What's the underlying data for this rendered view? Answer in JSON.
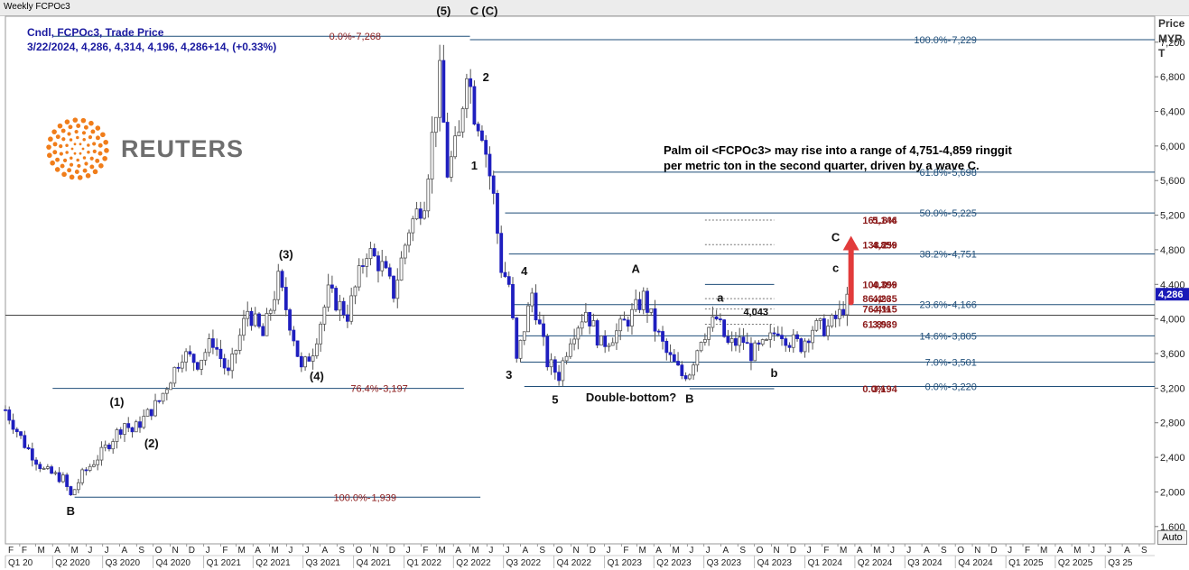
{
  "window": {
    "title": "Weekly FCPOc3"
  },
  "legend": {
    "line1": "Cndl, FCPOc3, Trade Price",
    "line2": "3/22/2024, 4,286, 4,314, 4,196, 4,286+14, (+0.33%)"
  },
  "axis": {
    "price_label": "Price",
    "currency_label": "MYR",
    "t_label": "T",
    "auto_label": "Auto"
  },
  "logo": {
    "text": "REUTERS"
  },
  "note": {
    "line1": "Palm oil <FCPOc3> may rise into a range of 4,751-4,859 ringgit",
    "line2": "per metric ton in the second quarter, driven by a wave C."
  },
  "chart_data": {
    "type": "candlestick",
    "title": "Weekly FCPOc3",
    "series_name": "Cndl, FCPOc3, Trade Price",
    "x_range": [
      "2020-01-06",
      "2025-09-29"
    ],
    "y_range": [
      1400,
      7500
    ],
    "y_ticks": [
      1600,
      2000,
      2400,
      2800,
      3200,
      3600,
      4000,
      4400,
      4800,
      5200,
      5600,
      6000,
      6400,
      6800,
      7200
    ],
    "y_tick_labels": [
      "1,600",
      "2,000",
      "2,400",
      "2,800",
      "3,200",
      "3,600",
      "4,000",
      "4,400",
      "4,800",
      "5,200",
      "5,600",
      "6,000",
      "6,400",
      "6,800",
      "7,200"
    ],
    "last_price": 4286,
    "last_price_label": "4,286",
    "horizontal_line": 4043,
    "month_ticks": [
      [
        "2020-02-01",
        "F"
      ],
      [
        "2020-03-01",
        "M"
      ],
      [
        "2020-04-01",
        "A"
      ],
      [
        "2020-05-01",
        "M"
      ],
      [
        "2020-06-01",
        "J"
      ],
      [
        "2020-07-01",
        "J"
      ],
      [
        "2020-08-01",
        "A"
      ],
      [
        "2020-09-01",
        "S"
      ],
      [
        "2020-10-01",
        "O"
      ],
      [
        "2020-11-01",
        "N"
      ],
      [
        "2020-12-01",
        "D"
      ],
      [
        "2021-01-01",
        "J"
      ],
      [
        "2021-02-01",
        "F"
      ],
      [
        "2021-03-01",
        "M"
      ],
      [
        "2021-04-01",
        "A"
      ],
      [
        "2021-05-01",
        "M"
      ],
      [
        "2021-06-01",
        "J"
      ],
      [
        "2021-07-01",
        "J"
      ],
      [
        "2021-08-01",
        "A"
      ],
      [
        "2021-09-01",
        "S"
      ],
      [
        "2021-10-01",
        "O"
      ],
      [
        "2021-11-01",
        "N"
      ],
      [
        "2021-12-01",
        "D"
      ],
      [
        "2022-01-01",
        "J"
      ],
      [
        "2022-02-01",
        "F"
      ],
      [
        "2022-03-01",
        "M"
      ],
      [
        "2022-04-01",
        "A"
      ],
      [
        "2022-05-01",
        "M"
      ],
      [
        "2022-06-01",
        "J"
      ],
      [
        "2022-07-01",
        "J"
      ],
      [
        "2022-08-01",
        "A"
      ],
      [
        "2022-09-01",
        "S"
      ],
      [
        "2022-10-01",
        "O"
      ],
      [
        "2022-11-01",
        "N"
      ],
      [
        "2022-12-01",
        "D"
      ],
      [
        "2023-01-01",
        "J"
      ],
      [
        "2023-02-01",
        "F"
      ],
      [
        "2023-03-01",
        "M"
      ],
      [
        "2023-04-01",
        "A"
      ],
      [
        "2023-05-01",
        "M"
      ],
      [
        "2023-06-01",
        "J"
      ],
      [
        "2023-07-01",
        "J"
      ],
      [
        "2023-08-01",
        "A"
      ],
      [
        "2023-09-01",
        "S"
      ],
      [
        "2023-10-01",
        "O"
      ],
      [
        "2023-11-01",
        "N"
      ],
      [
        "2023-12-01",
        "D"
      ],
      [
        "2024-01-01",
        "J"
      ],
      [
        "2024-02-01",
        "F"
      ],
      [
        "2024-03-01",
        "M"
      ],
      [
        "2024-04-01",
        "A"
      ],
      [
        "2024-05-01",
        "M"
      ],
      [
        "2024-06-01",
        "J"
      ],
      [
        "2024-07-01",
        "J"
      ],
      [
        "2024-08-01",
        "A"
      ],
      [
        "2024-09-01",
        "S"
      ],
      [
        "2024-10-01",
        "O"
      ],
      [
        "2024-11-01",
        "N"
      ],
      [
        "2024-12-01",
        "D"
      ],
      [
        "2025-01-01",
        "J"
      ],
      [
        "2025-02-01",
        "F"
      ],
      [
        "2025-03-01",
        "M"
      ],
      [
        "2025-04-01",
        "A"
      ],
      [
        "2025-05-01",
        "M"
      ],
      [
        "2025-06-01",
        "J"
      ],
      [
        "2025-07-01",
        "J"
      ],
      [
        "2025-08-01",
        "A"
      ],
      [
        "2025-09-01",
        "S"
      ]
    ],
    "quarter_ticks": [
      [
        "2020-01-01",
        "Q1 20"
      ],
      [
        "2020-04-01",
        "Q2 2020"
      ],
      [
        "2020-07-01",
        "Q3 2020"
      ],
      [
        "2020-10-01",
        "Q4 2020"
      ],
      [
        "2021-01-01",
        "Q1 2021"
      ],
      [
        "2021-04-01",
        "Q2 2021"
      ],
      [
        "2021-07-01",
        "Q3 2021"
      ],
      [
        "2021-10-01",
        "Q4 2021"
      ],
      [
        "2022-01-01",
        "Q1 2022"
      ],
      [
        "2022-04-01",
        "Q2 2022"
      ],
      [
        "2022-07-01",
        "Q3 2022"
      ],
      [
        "2022-10-01",
        "Q4 2022"
      ],
      [
        "2023-01-01",
        "Q1 2023"
      ],
      [
        "2023-04-01",
        "Q2 2023"
      ],
      [
        "2023-07-01",
        "Q3 2023"
      ],
      [
        "2023-10-01",
        "Q4 2023"
      ],
      [
        "2024-01-01",
        "Q1 2024"
      ],
      [
        "2024-04-01",
        "Q2 2024"
      ],
      [
        "2024-07-01",
        "Q3 2024"
      ],
      [
        "2024-10-01",
        "Q4 2024"
      ],
      [
        "2025-01-01",
        "Q1 2025"
      ],
      [
        "2025-04-01",
        "Q2 2025"
      ],
      [
        "2025-07-01",
        "Q3 25"
      ]
    ],
    "price_path": [
      [
        "2020-01-06",
        2950
      ],
      [
        "2020-02-10",
        2550
      ],
      [
        "2020-03-16",
        2250
      ],
      [
        "2020-04-20",
        2150
      ],
      [
        "2020-05-04",
        1950
      ],
      [
        "2020-05-25",
        2200
      ],
      [
        "2020-06-29",
        2450
      ],
      [
        "2020-08-10",
        2800
      ],
      [
        "2020-08-24",
        2700
      ],
      [
        "2020-10-12",
        3050
      ],
      [
        "2020-11-23",
        3600
      ],
      [
        "2020-12-21",
        3500
      ],
      [
        "2021-01-18",
        3750
      ],
      [
        "2021-02-15",
        3350
      ],
      [
        "2021-03-22",
        4100
      ],
      [
        "2021-04-19",
        3800
      ],
      [
        "2021-05-17",
        4450
      ],
      [
        "2021-06-14",
        3800
      ],
      [
        "2021-06-28",
        3400
      ],
      [
        "2021-07-19",
        3650
      ],
      [
        "2021-08-16",
        4300
      ],
      [
        "2021-09-20",
        4050
      ],
      [
        "2021-10-25",
        4800
      ],
      [
        "2021-11-22",
        4600
      ],
      [
        "2021-12-13",
        4300
      ],
      [
        "2022-01-10",
        5050
      ],
      [
        "2022-02-07",
        5400
      ],
      [
        "2022-03-07",
        6800
      ],
      [
        "2022-03-21",
        5700
      ],
      [
        "2022-04-11",
        6100
      ],
      [
        "2022-04-25",
        6950
      ],
      [
        "2022-05-09",
        6400
      ],
      [
        "2022-05-23",
        6200
      ],
      [
        "2022-06-13",
        5400
      ],
      [
        "2022-06-27",
        4600
      ],
      [
        "2022-07-11",
        4400
      ],
      [
        "2022-07-25",
        3500
      ],
      [
        "2022-08-22",
        4300
      ],
      [
        "2022-09-19",
        3500
      ],
      [
        "2022-10-10",
        3350
      ],
      [
        "2022-10-31",
        3800
      ],
      [
        "2022-11-28",
        4100
      ],
      [
        "2022-12-26",
        3700
      ],
      [
        "2023-01-23",
        3850
      ],
      [
        "2023-02-20",
        4050
      ],
      [
        "2023-03-13",
        4250
      ],
      [
        "2023-04-03",
        3900
      ],
      [
        "2023-04-24",
        3600
      ],
      [
        "2023-05-22",
        3350
      ],
      [
        "2023-06-05",
        3400
      ],
      [
        "2023-06-26",
        3800
      ],
      [
        "2023-07-24",
        4000
      ],
      [
        "2023-08-14",
        3700
      ],
      [
        "2023-09-11",
        3750
      ],
      [
        "2023-09-25",
        3600
      ],
      [
        "2023-10-23",
        3700
      ],
      [
        "2023-11-13",
        3900
      ],
      [
        "2023-12-04",
        3750
      ],
      [
        "2023-12-25",
        3700
      ],
      [
        "2024-01-15",
        3900
      ],
      [
        "2024-02-12",
        3900
      ],
      [
        "2024-03-04",
        4050
      ],
      [
        "2024-03-22",
        4286
      ]
    ],
    "fib_lines": [
      {
        "price": 7268,
        "start": "2020-04-01",
        "end": "2022-05-01",
        "color": "#1f4e79",
        "label": "0.0%-",
        "label_color": "#8b1a1a",
        "value_label": "7,268",
        "value_color": "#8b1a1a",
        "label_date": "2021-10-04"
      },
      {
        "price": 3197,
        "start": "2020-04-01",
        "end": "2022-04-20",
        "color": "#1f4e79",
        "label": "76.4%-",
        "label_color": "#8b1a1a",
        "value_label": "3,197",
        "value_color": "#8b1a1a",
        "label_date": "2021-11-22"
      },
      {
        "price": 1939,
        "start": "2020-05-11",
        "end": "2022-05-20",
        "color": "#1f4e79",
        "label": "100.0%-",
        "label_color": "#8b1a1a",
        "value_label": "1,939",
        "value_color": "#8b1a1a",
        "label_date": "2021-11-01"
      },
      {
        "price": 7229,
        "start": "2022-05-01",
        "end": "2025-09-29",
        "color": "#1f4e79",
        "label": "100.0%-",
        "label_color": "#1f4e79",
        "value_label": "7,229",
        "value_color": "#1f4e79",
        "label_date": "2024-09-23"
      },
      {
        "price": 5698,
        "start": "2022-06-13",
        "end": "2025-09-29",
        "color": "#1f4e79",
        "label": "61.8%-",
        "label_color": "#1f4e79",
        "value_label": "5,698",
        "value_color": "#1f4e79",
        "label_date": "2024-09-23"
      },
      {
        "price": 5225,
        "start": "2022-07-04",
        "end": "2025-09-29",
        "color": "#1f4e79",
        "label": "50.0%-",
        "label_color": "#1f4e79",
        "value_label": "5,225",
        "value_color": "#1f4e79",
        "label_date": "2024-09-23"
      },
      {
        "price": 4751,
        "start": "2022-07-11",
        "end": "2025-09-29",
        "color": "#1f4e79",
        "label": "38.2%-",
        "label_color": "#1f4e79",
        "value_label": "4,751",
        "value_color": "#1f4e79",
        "label_date": "2024-09-23"
      },
      {
        "price": 4166,
        "start": "2022-07-18",
        "end": "2025-09-29",
        "color": "#1f4e79",
        "label": "23.6%-",
        "label_color": "#1f4e79",
        "value_label": "4,166",
        "value_color": "#1f4e79",
        "label_date": "2024-09-23"
      },
      {
        "price": 3805,
        "start": "2022-07-25",
        "end": "2025-09-29",
        "color": "#1f4e79",
        "label": "14.6%-",
        "label_color": "#1f4e79",
        "value_label": "3,805",
        "value_color": "#1f4e79",
        "label_date": "2024-09-23"
      },
      {
        "price": 3501,
        "start": "2022-08-01",
        "end": "2025-09-29",
        "color": "#1f4e79",
        "label": "7.0%-",
        "label_color": "#1f4e79",
        "value_label": "3,501",
        "value_color": "#1f4e79",
        "label_date": "2024-09-23"
      },
      {
        "price": 3220,
        "start": "2022-08-08",
        "end": "2025-09-29",
        "color": "#1f4e79",
        "label": "0.0%-",
        "label_color": "#1f4e79",
        "value_label": "3,220",
        "value_color": "#1f4e79",
        "label_date": "2024-09-23"
      }
    ],
    "ext_lines": [
      {
        "price": 5144,
        "start": "2023-07-03",
        "end": "2023-11-06",
        "style": "dash",
        "label": "161.8%",
        "value_label": "5,144"
      },
      {
        "price": 4859,
        "start": "2023-07-03",
        "end": "2023-11-06",
        "style": "dash",
        "label": "138.2%",
        "value_label": "4,859"
      },
      {
        "price": 4399,
        "start": "2023-07-03",
        "end": "2023-11-06",
        "style": "solid",
        "label": "100.0%",
        "value_label": "4,399"
      },
      {
        "price": 4235,
        "start": "2023-07-03",
        "end": "2023-11-06",
        "style": "dash",
        "label": "86.4%",
        "value_label": "4,235"
      },
      {
        "price": 4115,
        "start": "2023-07-03",
        "end": "2023-11-06",
        "style": "dash",
        "label": "76.4%",
        "value_label": "4,115"
      },
      {
        "price": 3939,
        "start": "2023-07-03",
        "end": "2023-11-06",
        "style": "dash",
        "label": "61.8%",
        "value_label": "3,939"
      },
      {
        "price": 3194,
        "start": "2023-06-05",
        "end": "2023-11-06",
        "style": "solid",
        "label": "0.0%",
        "value_label": "3,194"
      }
    ],
    "ext_label_date": "2024-04-15",
    "ext_value_date": "2024-06-17",
    "wave_labels": [
      {
        "date": "2020-05-04",
        "price": 1735,
        "text": "B"
      },
      {
        "date": "2020-07-27",
        "price": 2995,
        "text": "(1)"
      },
      {
        "date": "2020-09-28",
        "price": 2515,
        "text": "(2)"
      },
      {
        "date": "2021-05-31",
        "price": 4700,
        "text": "(3)"
      },
      {
        "date": "2021-07-26",
        "price": 3290,
        "text": "(4)"
      },
      {
        "date": "2022-03-14",
        "price": 7515,
        "text": "(5)"
      },
      {
        "date": "2022-05-09",
        "price": 7515,
        "text": "C"
      },
      {
        "date": "2022-06-06",
        "price": 7515,
        "text": "(C)"
      },
      {
        "date": "2022-05-30",
        "price": 6750,
        "text": "2"
      },
      {
        "date": "2022-05-09",
        "price": 5725,
        "text": "1"
      },
      {
        "date": "2022-08-08",
        "price": 4505,
        "text": "4"
      },
      {
        "date": "2022-07-11",
        "price": 3310,
        "text": "3"
      },
      {
        "date": "2022-10-03",
        "price": 3020,
        "text": "5"
      },
      {
        "date": "2023-02-27",
        "price": 4535,
        "text": "A"
      },
      {
        "date": "2023-06-05",
        "price": 3030,
        "text": "B"
      },
      {
        "date": "2023-07-31",
        "price": 4200,
        "text": "a"
      },
      {
        "date": "2023-11-06",
        "price": 3330,
        "text": "b"
      },
      {
        "date": "2024-02-26",
        "price": 4545,
        "text": "c"
      },
      {
        "date": "2024-02-26",
        "price": 4900,
        "text": "C"
      }
    ],
    "annotations": [
      {
        "date": "2022-11-28",
        "price": 3050,
        "text": "Double-bottom?"
      },
      {
        "date": "2023-09-11",
        "price": 4043,
        "text": "4,043"
      }
    ],
    "arrow": {
      "start_date": "2024-03-25",
      "start_price": 4190,
      "end_date": "2024-03-25",
      "end_price": 4940,
      "color": "#e23b3b"
    }
  }
}
